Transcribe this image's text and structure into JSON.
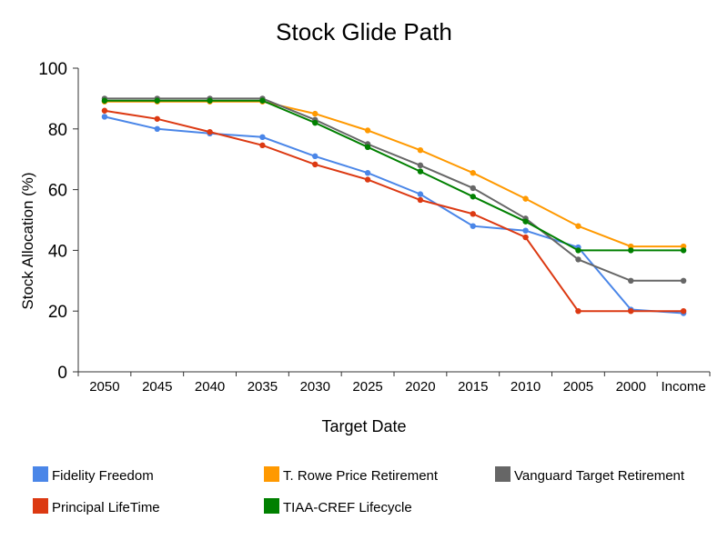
{
  "chart_data": {
    "type": "line",
    "title": "Stock Glide Path",
    "xlabel": "Target Date",
    "ylabel": "Stock Allocation (%)",
    "ylim": [
      0,
      100
    ],
    "yticks": [
      "0",
      "20",
      "40",
      "60",
      "80",
      "100"
    ],
    "grid": false,
    "legend_position": "bottom",
    "categories": [
      "2050",
      "2045",
      "2040",
      "2035",
      "2030",
      "2025",
      "2020",
      "2015",
      "2010",
      "2005",
      "2000",
      "Income"
    ],
    "series": [
      {
        "name": "Fidelity Freedom",
        "color": "#4a86e8",
        "values": [
          84,
          80,
          78.5,
          77.3,
          71,
          65.5,
          58.5,
          48,
          46.5,
          41,
          20.5,
          19.3
        ]
      },
      {
        "name": "T. Rowe Price Retirement",
        "color": "#ff9900",
        "values": [
          89,
          89,
          89,
          89,
          85,
          79.5,
          73,
          65.5,
          57,
          48,
          41.3,
          41.3
        ]
      },
      {
        "name": "Vanguard Target Retirement",
        "color": "#666666",
        "values": [
          90,
          90,
          90,
          90,
          83,
          75,
          68,
          60.5,
          50.5,
          37,
          30,
          30
        ]
      },
      {
        "name": "Principal LifeTime",
        "color": "#dc3912",
        "values": [
          86,
          83.3,
          79,
          74.6,
          68.3,
          63.3,
          56.6,
          52,
          44.3,
          20,
          20,
          20
        ]
      },
      {
        "name": "TIAA-CREF Lifecycle",
        "color": "#008000",
        "values": [
          89.3,
          89.3,
          89.3,
          89.3,
          82,
          74,
          66,
          57.7,
          49.5,
          40,
          40,
          40
        ]
      }
    ]
  }
}
